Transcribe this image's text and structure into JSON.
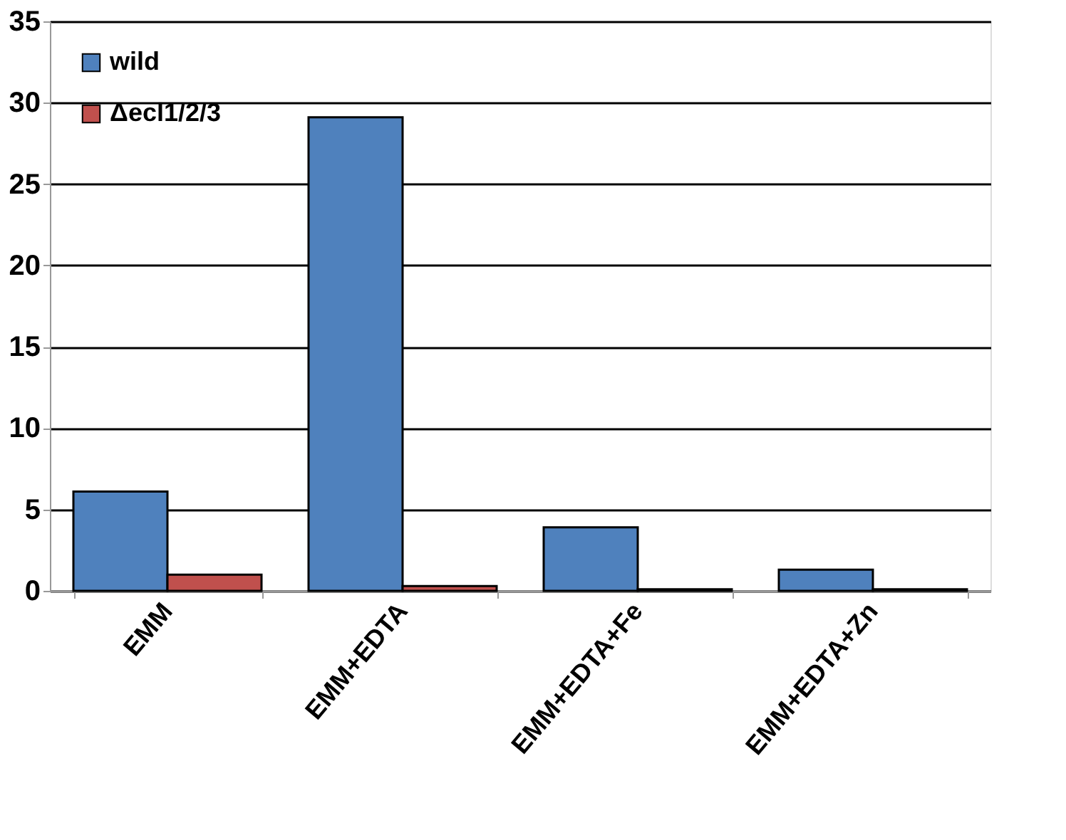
{
  "chart_data": {
    "type": "bar",
    "categories": [
      "EMM",
      "EMM+EDTA",
      "EMM+EDTA+Fe",
      "EMM+EDTA+Zn"
    ],
    "series": [
      {
        "name": "wild",
        "color": "#4f81bd",
        "values": [
          6.1,
          29.1,
          3.9,
          1.3
        ]
      },
      {
        "name": "Δecl1/2/3",
        "color": "#c0504d",
        "values": [
          1.0,
          0.3,
          0.1,
          0.1
        ]
      }
    ],
    "ylim": [
      0,
      35
    ],
    "yticks": [
      0,
      5,
      10,
      15,
      20,
      25,
      30,
      35
    ],
    "grid": "y",
    "legend": "top left"
  }
}
